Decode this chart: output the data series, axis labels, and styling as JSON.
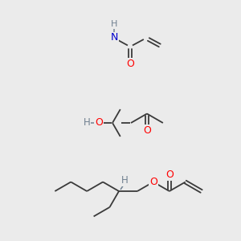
{
  "bg_color": "#ebebeb",
  "bond_color": "#3a3a3a",
  "atom_colors": {
    "O": "#ff0000",
    "N": "#0000cd",
    "H": "#708090",
    "C": "#3a3a3a"
  },
  "figsize": [
    3.0,
    3.0
  ],
  "dpi": 100
}
